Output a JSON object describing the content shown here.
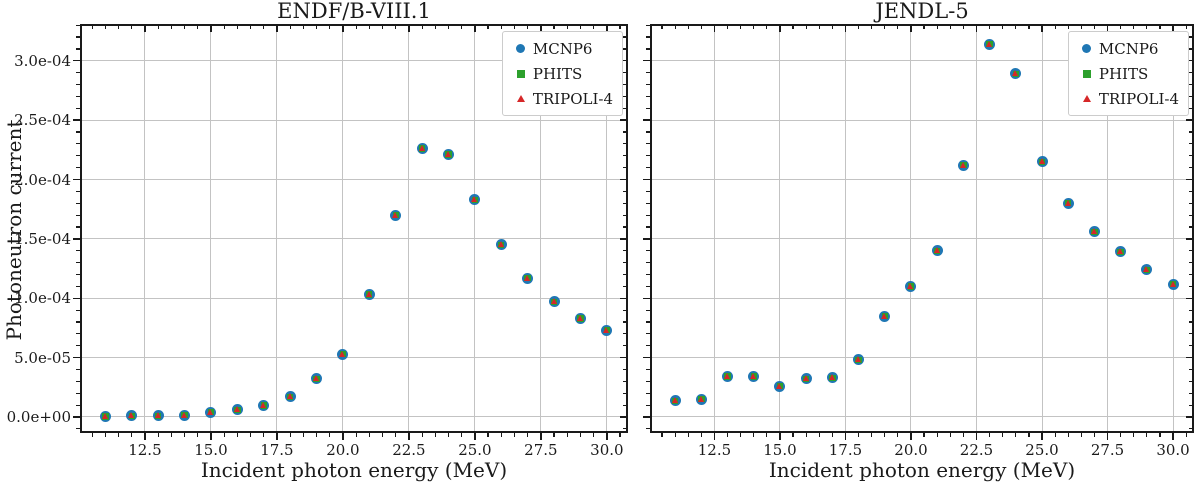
{
  "figure": {
    "background": "#ffffff",
    "text_color": "#1a1a1a"
  },
  "colors": {
    "grid": "#c3c3c3",
    "spine": "#1a1a1a",
    "legend_border": "#cccccc"
  },
  "shared": {
    "ylabel": "Photoneutron current"
  },
  "chart_data": [
    {
      "type": "scatter",
      "title": "ENDF/B-VIII.1",
      "xlabel": "Incident photon energy (MeV)",
      "ylabel": "Photoneutron current",
      "x": [
        11,
        12,
        13,
        14,
        15,
        16,
        17,
        18,
        19,
        20,
        21,
        22,
        23,
        24,
        25,
        26,
        27,
        28,
        29,
        30
      ],
      "series": [
        {
          "name": "MCNP6",
          "marker": "circle",
          "color": "#1f77b4",
          "values": [
            5e-07,
            1e-06,
            1e-06,
            1.5e-06,
            4e-06,
            6e-06,
            9.5e-06,
            1.7e-05,
            3.2e-05,
            5.3e-05,
            0.000103,
            0.00017,
            0.000226,
            0.000221,
            0.000183,
            0.000145,
            0.000117,
            9.7e-05,
            8.3e-05,
            7.3e-05
          ]
        },
        {
          "name": "PHITS",
          "marker": "square",
          "color": "#2ca02c",
          "values": [
            5e-07,
            1e-06,
            1e-06,
            1.5e-06,
            4e-06,
            6e-06,
            9.5e-06,
            1.7e-05,
            3.2e-05,
            5.3e-05,
            0.000103,
            0.00017,
            0.000226,
            0.000221,
            0.000183,
            0.000145,
            0.000117,
            9.7e-05,
            8.3e-05,
            7.3e-05
          ]
        },
        {
          "name": "TRIPOLI-4",
          "marker": "triangle",
          "color": "#d62728",
          "values": [
            5e-07,
            1e-06,
            1e-06,
            1.5e-06,
            4e-06,
            6e-06,
            9.5e-06,
            1.7e-05,
            3.2e-05,
            5.3e-05,
            0.000103,
            0.00017,
            0.000226,
            0.000221,
            0.000183,
            0.000145,
            0.000117,
            9.7e-05,
            8.3e-05,
            7.3e-05
          ]
        }
      ],
      "xlim": [
        10.04,
        30.8
      ],
      "ylim": [
        -1.35e-05,
        0.000331
      ],
      "xticks": [
        {
          "v": 12.5,
          "label": "12.5"
        },
        {
          "v": 15.0,
          "label": "15.0"
        },
        {
          "v": 17.5,
          "label": "17.5"
        },
        {
          "v": 20.0,
          "label": "20.0"
        },
        {
          "v": 22.5,
          "label": "22.5"
        },
        {
          "v": 25.0,
          "label": "25.0"
        },
        {
          "v": 27.5,
          "label": "27.5"
        },
        {
          "v": 30.0,
          "label": "30.0"
        }
      ],
      "yticks": [
        {
          "v": 0.0,
          "label": "0.0e+00"
        },
        {
          "v": 5e-05,
          "label": "5.0e-05"
        },
        {
          "v": 0.0001,
          "label": "1.0e-04"
        },
        {
          "v": 0.00015,
          "label": "1.5e-04"
        },
        {
          "v": 0.0002,
          "label": "2.0e-04"
        },
        {
          "v": 0.00025,
          "label": "2.5e-04"
        },
        {
          "v": 0.0003,
          "label": "3.0e-04"
        }
      ],
      "grid": true,
      "legend_position": "upper right"
    },
    {
      "type": "scatter",
      "title": "JENDL-5",
      "xlabel": "Incident photon energy (MeV)",
      "ylabel": "Photoneutron current",
      "x": [
        11,
        12,
        13,
        14,
        15,
        16,
        17,
        18,
        19,
        20,
        21,
        22,
        23,
        24,
        25,
        26,
        27,
        28,
        29,
        30
      ],
      "series": [
        {
          "name": "MCNP6",
          "marker": "circle",
          "color": "#1f77b4",
          "values": [
            1.35e-05,
            1.5e-05,
            3.4e-05,
            3.4e-05,
            2.6e-05,
            3.2e-05,
            3.3e-05,
            4.8e-05,
            8.5e-05,
            0.00011,
            0.00014,
            0.000212,
            0.000314,
            0.000289,
            0.000215,
            0.00018,
            0.000156,
            0.000139,
            0.000124,
            0.000112
          ]
        },
        {
          "name": "PHITS",
          "marker": "square",
          "color": "#2ca02c",
          "values": [
            1.35e-05,
            1.5e-05,
            3.4e-05,
            3.4e-05,
            2.6e-05,
            3.2e-05,
            3.3e-05,
            4.8e-05,
            8.5e-05,
            0.00011,
            0.00014,
            0.000212,
            0.000314,
            0.000289,
            0.000215,
            0.00018,
            0.000156,
            0.000139,
            0.000124,
            0.000112
          ]
        },
        {
          "name": "TRIPOLI-4",
          "marker": "triangle",
          "color": "#d62728",
          "values": [
            1.35e-05,
            1.5e-05,
            3.4e-05,
            3.4e-05,
            2.6e-05,
            3.2e-05,
            3.3e-05,
            4.8e-05,
            8.5e-05,
            0.00011,
            0.00014,
            0.000212,
            0.000314,
            0.000289,
            0.000215,
            0.00018,
            0.000156,
            0.000139,
            0.000124,
            0.000112
          ]
        }
      ],
      "xlim": [
        10.04,
        30.8
      ],
      "ylim": [
        -1.35e-05,
        0.000331
      ],
      "xticks": [
        {
          "v": 12.5,
          "label": "12.5"
        },
        {
          "v": 15.0,
          "label": "15.0"
        },
        {
          "v": 17.5,
          "label": "17.5"
        },
        {
          "v": 20.0,
          "label": "20.0"
        },
        {
          "v": 22.5,
          "label": "22.5"
        },
        {
          "v": 25.0,
          "label": "25.0"
        },
        {
          "v": 27.5,
          "label": "27.5"
        },
        {
          "v": 30.0,
          "label": "30.0"
        }
      ],
      "yticks": [
        {
          "v": 0.0,
          "label": "0.0e+00"
        },
        {
          "v": 5e-05,
          "label": "5.0e-05"
        },
        {
          "v": 0.0001,
          "label": "1.0e-04"
        },
        {
          "v": 0.00015,
          "label": "1.5e-04"
        },
        {
          "v": 0.0002,
          "label": "2.0e-04"
        },
        {
          "v": 0.00025,
          "label": "2.5e-04"
        },
        {
          "v": 0.0003,
          "label": "3.0e-04"
        }
      ],
      "grid": true,
      "legend_position": "upper right"
    }
  ]
}
